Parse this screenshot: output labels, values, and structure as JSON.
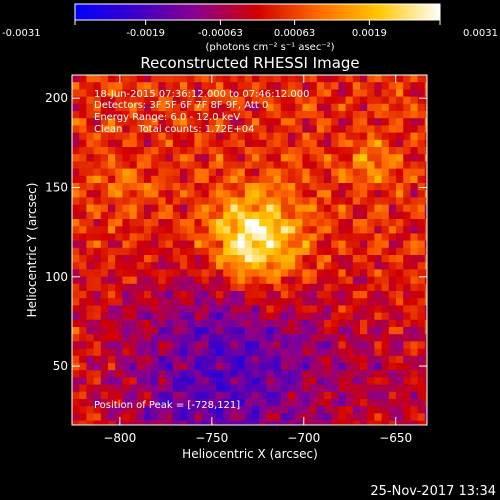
{
  "colorbar": {
    "ticks": [
      "-0.0031",
      "-0.0019",
      "-0.00063",
      "0.00063",
      "0.0019",
      "0.0031"
    ],
    "tick_values": [
      -0.0031,
      -0.0019,
      -0.00063,
      0.00063,
      0.0019,
      0.0031
    ],
    "min": -0.0031,
    "max": 0.0031,
    "unit_label": "(photons cm⁻² s⁻¹ asec⁻²)",
    "colors": [
      "#0000ff",
      "#3c00c8",
      "#8c008c",
      "#d20000",
      "#ff6a00",
      "#ffc800",
      "#ffffff"
    ]
  },
  "chart_data": {
    "type": "heatmap",
    "title": "Reconstructed RHESSI Image",
    "xlabel": "Heliocentric X (arcsec)",
    "ylabel": "Heliocentric Y (arcsec)",
    "xlim": [
      -826,
      -633
    ],
    "ylim": [
      17,
      213
    ],
    "xticks": [
      -800,
      -750,
      -700,
      -650
    ],
    "yticks": [
      50,
      100,
      150,
      200
    ],
    "peak": [
      -728,
      121
    ],
    "grid": false
  },
  "annotations": {
    "time_range": "18-Jun-2015 07:36:12.000 to 07:46:12.000",
    "detectors": "Detectors: 3F 5F 6F 7F 8F 9F, Att 0",
    "energy": "Energy Range: 6.0 - 12.0 keV",
    "clean": "Clean     Total counts: 1.72E+04",
    "peak_text": "Position of Peak = [-728,121]"
  },
  "footer": {
    "timestamp": "25-Nov-2017 13:34"
  }
}
